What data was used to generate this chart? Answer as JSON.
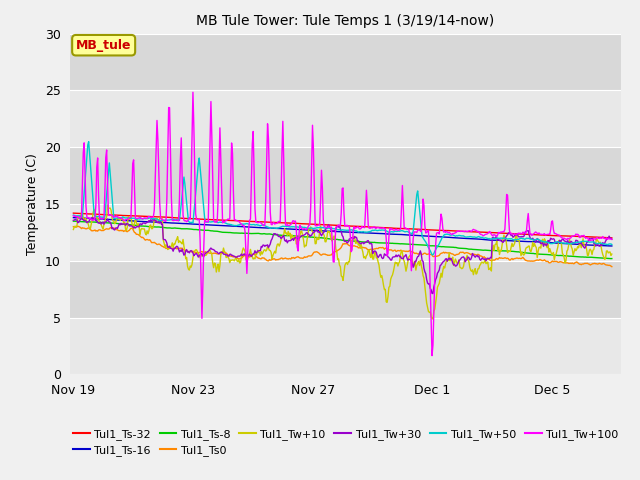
{
  "title": "MB Tule Tower: Tule Temps 1 (3/19/14-now)",
  "ylabel": "Temperature (C)",
  "ylim": [
    0,
    30
  ],
  "yticks": [
    0,
    5,
    10,
    15,
    20,
    25,
    30
  ],
  "plot_bg": "#e8e8e8",
  "fig_bg": "#f0f0f0",
  "band_colors": [
    "#e8e8e8",
    "#d8d8d8"
  ],
  "legend_box_label": "MB_tule",
  "legend_box_facecolor": "#ffff99",
  "legend_box_edgecolor": "#999900",
  "legend_box_textcolor": "#cc0000",
  "series": [
    {
      "label": "Tul1_Ts-32",
      "color": "#ff0000"
    },
    {
      "label": "Tul1_Ts-16",
      "color": "#0000cc"
    },
    {
      "label": "Tul1_Ts-8",
      "color": "#00cc00"
    },
    {
      "label": "Tul1_Ts0",
      "color": "#ff8800"
    },
    {
      "label": "Tul1_Tw+10",
      "color": "#cccc00"
    },
    {
      "label": "Tul1_Tw+30",
      "color": "#9900cc"
    },
    {
      "label": "Tul1_Tw+50",
      "color": "#00cccc"
    },
    {
      "label": "Tul1_Tw+100",
      "color": "#ff00ff"
    }
  ],
  "xtick_labels": [
    "Nov 19",
    "Nov 23",
    "Nov 27",
    "Dec 1",
    "Dec 5"
  ],
  "xtick_positions": [
    0,
    4,
    8,
    12,
    16
  ]
}
